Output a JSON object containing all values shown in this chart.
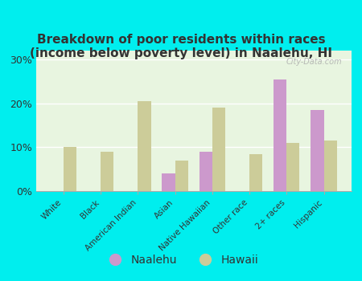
{
  "title": "Breakdown of poor residents within races\n(income below poverty level) in Naalehu, HI",
  "categories": [
    "White",
    "Black",
    "American Indian",
    "Asian",
    "Native Hawaiian",
    "Other race",
    "2+ races",
    "Hispanic"
  ],
  "naalehu_values": [
    0,
    0,
    0,
    4.0,
    9.0,
    0,
    25.5,
    18.5
  ],
  "hawaii_values": [
    10.0,
    9.0,
    20.5,
    7.0,
    19.0,
    8.5,
    11.0,
    11.5
  ],
  "naalehu_color": "#cc99cc",
  "hawaii_color": "#cccc99",
  "background_color": "#00eeee",
  "plot_bg": "#e8f5e0",
  "title_color": "#333333",
  "ylabel_ticks": [
    0,
    10,
    20,
    30
  ],
  "ylim": [
    0,
    32
  ],
  "bar_width": 0.35,
  "watermark": "City-Data.com"
}
